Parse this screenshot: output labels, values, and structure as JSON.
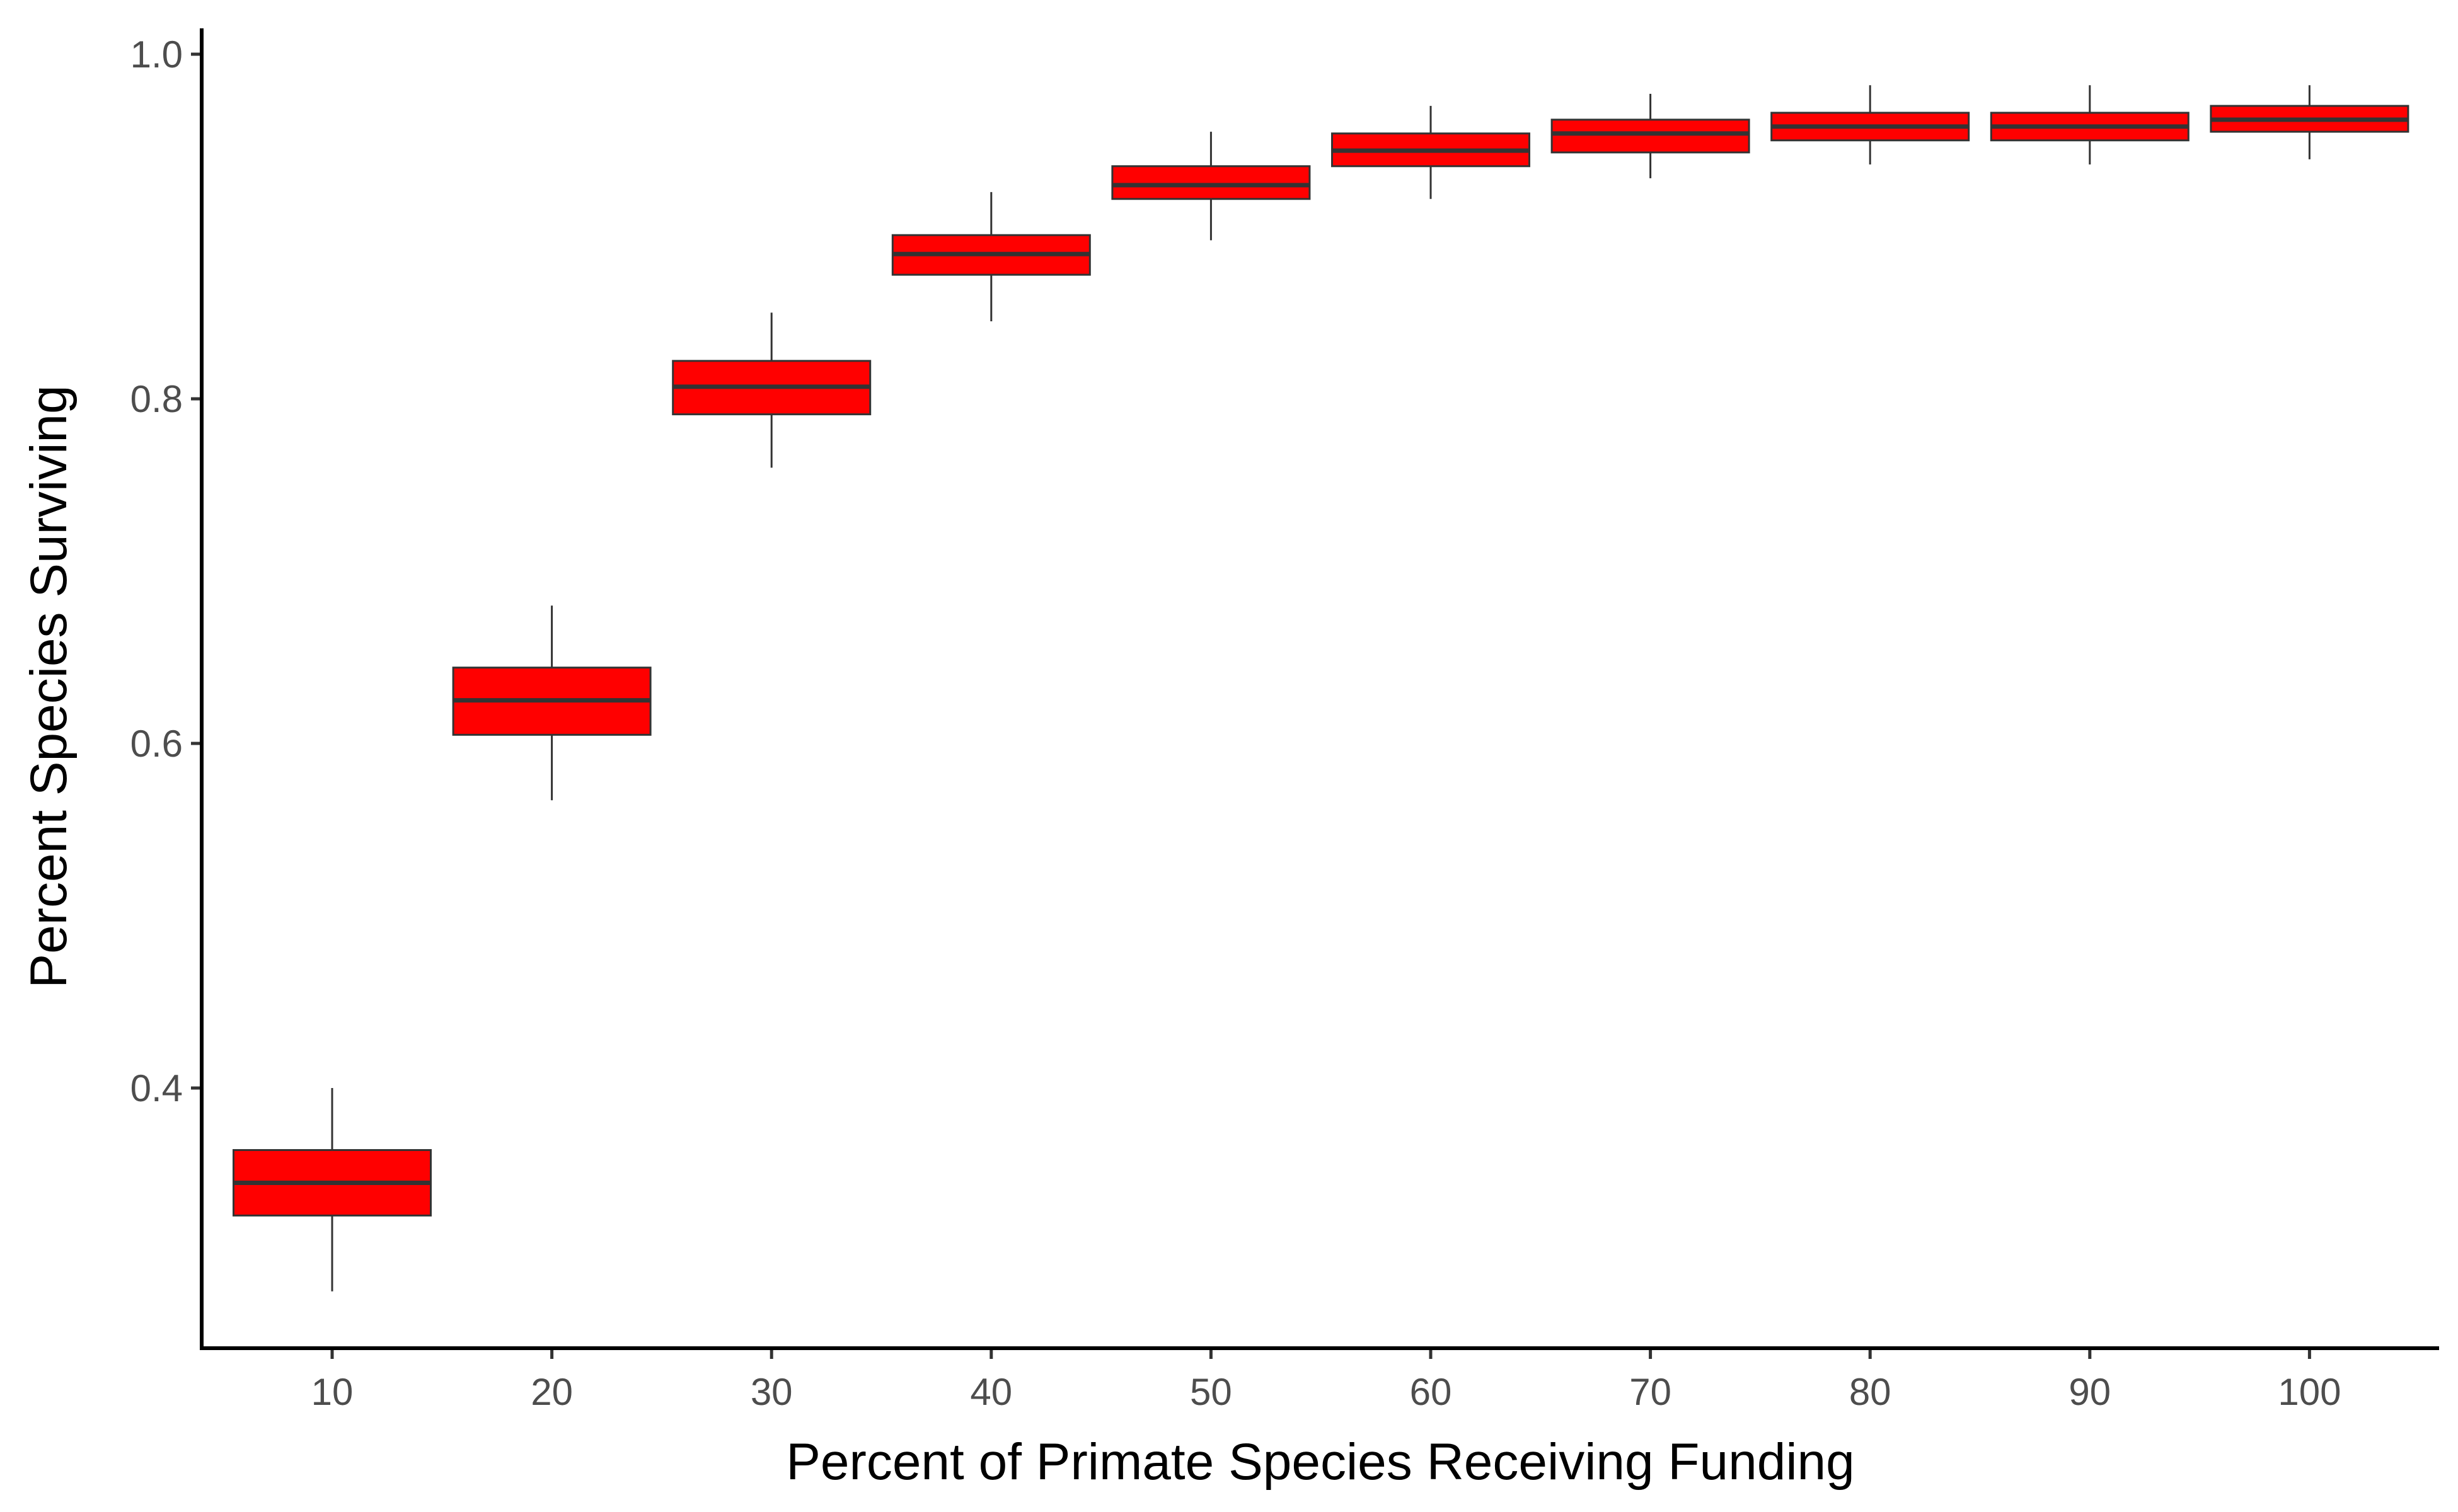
{
  "chart_data": {
    "type": "boxplot",
    "xlabel": "Percent of Primate Species Receiving Funding",
    "ylabel": "Percent Species Surviving",
    "categories": [
      "10",
      "20",
      "30",
      "40",
      "50",
      "60",
      "70",
      "80",
      "90",
      "100"
    ],
    "yticks": [
      "0.4",
      "0.6",
      "0.8",
      "1.0"
    ],
    "ylim": [
      0.249,
      1.015
    ],
    "grid": false,
    "legend": "none",
    "fill_color": "#ff0000",
    "line_color": "#333333",
    "boxes": [
      {
        "category": "10",
        "min": 0.282,
        "q1": 0.326,
        "median": 0.345,
        "q3": 0.364,
        "max": 0.4
      },
      {
        "category": "20",
        "min": 0.567,
        "q1": 0.605,
        "median": 0.625,
        "q3": 0.644,
        "max": 0.68
      },
      {
        "category": "30",
        "min": 0.76,
        "q1": 0.791,
        "median": 0.807,
        "q3": 0.822,
        "max": 0.85
      },
      {
        "category": "40",
        "min": 0.845,
        "q1": 0.872,
        "median": 0.884,
        "q3": 0.895,
        "max": 0.92
      },
      {
        "category": "50",
        "min": 0.892,
        "q1": 0.916,
        "median": 0.924,
        "q3": 0.935,
        "max": 0.955
      },
      {
        "category": "60",
        "min": 0.916,
        "q1": 0.935,
        "median": 0.944,
        "q3": 0.954,
        "max": 0.97
      },
      {
        "category": "70",
        "min": 0.928,
        "q1": 0.943,
        "median": 0.954,
        "q3": 0.962,
        "max": 0.977
      },
      {
        "category": "80",
        "min": 0.936,
        "q1": 0.95,
        "median": 0.958,
        "q3": 0.966,
        "max": 0.982
      },
      {
        "category": "90",
        "min": 0.936,
        "q1": 0.95,
        "median": 0.958,
        "q3": 0.966,
        "max": 0.982
      },
      {
        "category": "100",
        "min": 0.939,
        "q1": 0.955,
        "median": 0.962,
        "q3": 0.97,
        "max": 0.982
      }
    ]
  }
}
